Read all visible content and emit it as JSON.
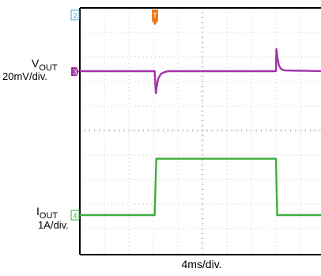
{
  "chart_data": {
    "type": "line",
    "channel_markers": [
      {
        "text": "2",
        "color": "#4fa0c8"
      },
      {
        "text": "3",
        "color": "#a033a8"
      },
      {
        "text": "4",
        "color": "#3fae3f"
      },
      {
        "text": "T",
        "color": "#f07a16"
      }
    ],
    "traces": {
      "vout": {
        "label_main": "V",
        "label_sub": "OUT",
        "scale": "20mV/div.",
        "color": "#a033a8",
        "x_div": [
          0,
          3.05,
          3.1,
          3.15,
          3.2,
          3.3,
          3.45,
          3.6,
          8.0,
          8.02,
          8.06,
          8.12,
          8.2,
          8.35,
          10
        ],
        "y_div": [
          0,
          0,
          -0.9,
          -0.55,
          -0.3,
          -0.12,
          -0.04,
          0,
          0,
          0.9,
          0.55,
          0.25,
          0.1,
          0.03,
          0
        ]
      },
      "iout": {
        "label_main": "I",
        "label_sub": "OUT",
        "scale": "1A/div.",
        "color": "#3fae3f",
        "x_div": [
          0,
          3.05,
          3.12,
          8.0,
          8.05,
          10
        ],
        "y_div": [
          0,
          0,
          2.3,
          2.3,
          0,
          0
        ]
      }
    },
    "xlabel": "4ms/div.",
    "grid": true
  }
}
